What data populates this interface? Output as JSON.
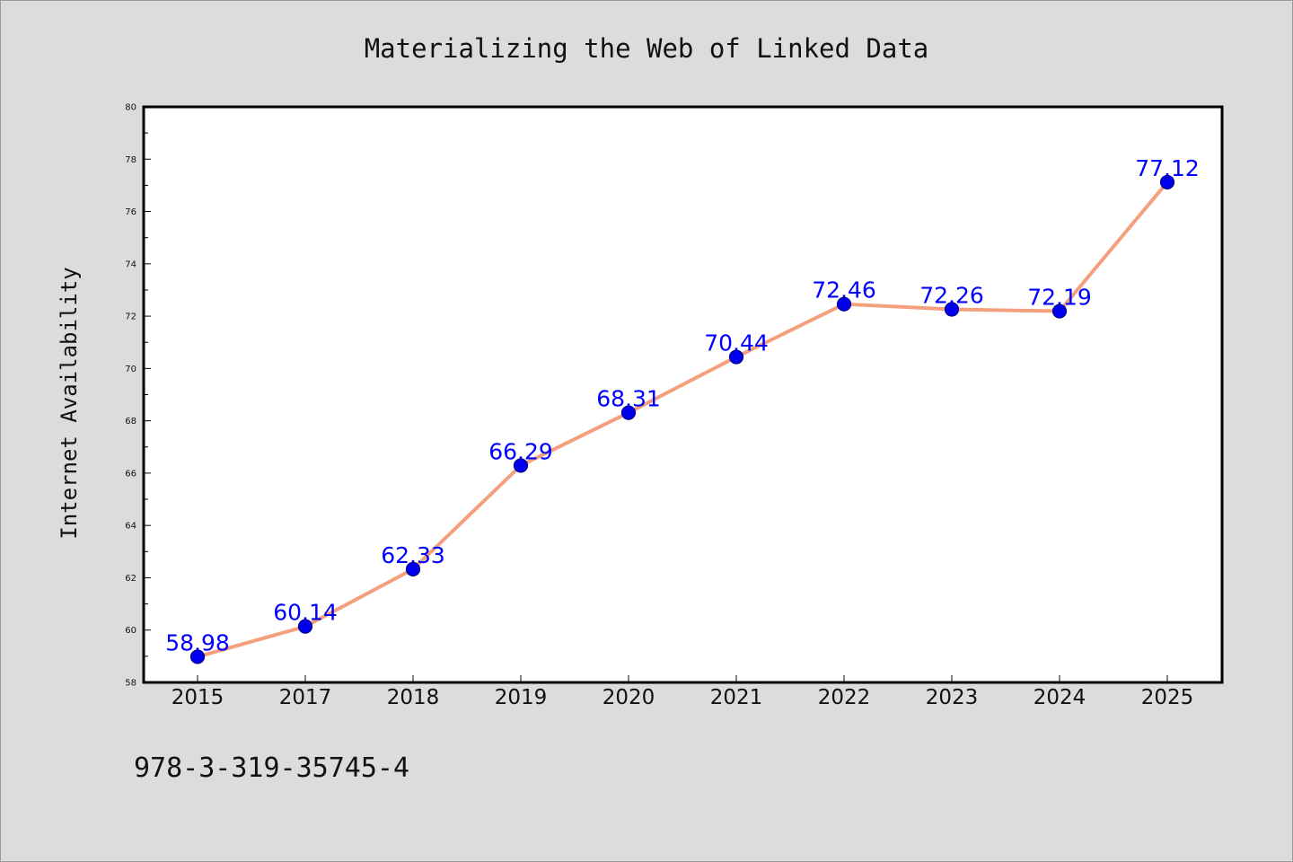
{
  "chart_data": {
    "type": "line",
    "title": "Materializing the Web of Linked Data",
    "xlabel": "",
    "ylabel": "Internet Availability",
    "categories": [
      "2015",
      "2017",
      "2018",
      "2019",
      "2020",
      "2021",
      "2022",
      "2023",
      "2024",
      "2025"
    ],
    "series": [
      {
        "values": [
          58.98,
          60.14,
          62.33,
          66.29,
          68.31,
          70.44,
          72.46,
          72.26,
          72.19,
          77.12
        ],
        "line_color": "#f4a07e",
        "marker_color": "#0000ee"
      }
    ],
    "data_labels": [
      "58.98",
      "60.14",
      "62.33",
      "66.29",
      "68.31",
      "70.44",
      "72.46",
      "72.26",
      "72.19",
      "77.12"
    ],
    "ylim": [
      58,
      80
    ],
    "yticks": [
      58,
      60,
      62,
      64,
      66,
      68,
      70,
      72,
      74,
      76,
      78,
      80
    ],
    "ytick_labels": [
      "58",
      "60",
      "62",
      "64",
      "66",
      "68",
      "70",
      "72",
      "74",
      "76",
      "78",
      "80"
    ],
    "grid": false,
    "legend": "none",
    "label_color": "#0000ff"
  },
  "footer": {
    "text": "978-3-319-35745-4"
  }
}
